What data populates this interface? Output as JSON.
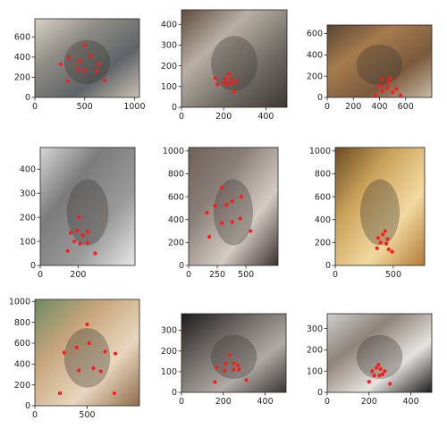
{
  "colors": {
    "keypoint": "#ff1a1a",
    "axes": "#222222",
    "background": "#ffffff"
  },
  "chart_data": [
    {
      "type": "scatter",
      "image": "gray cat lying on pillow",
      "xlim": [
        0,
        1050
      ],
      "ylim": [
        780,
        0
      ],
      "xticks": [
        0,
        500,
        1000
      ],
      "yticks": [
        0,
        200,
        400,
        600
      ],
      "points": [
        [
          330,
          160
        ],
        [
          430,
          280
        ],
        [
          500,
          270
        ],
        [
          620,
          260
        ],
        [
          700,
          170
        ],
        [
          260,
          330
        ],
        [
          340,
          390
        ],
        [
          450,
          360
        ],
        [
          560,
          410
        ],
        [
          640,
          330
        ],
        [
          500,
          520
        ]
      ]
    },
    {
      "type": "scatter",
      "image": "cat on cluttered desk with phone",
      "xlim": [
        0,
        500
      ],
      "ylim": [
        470,
        0
      ],
      "xticks": [
        0,
        200,
        400
      ],
      "yticks": [
        0,
        100,
        200,
        300,
        400
      ],
      "points": [
        [
          170,
          110
        ],
        [
          200,
          120
        ],
        [
          215,
          110
        ],
        [
          235,
          115
        ],
        [
          250,
          75
        ],
        [
          160,
          140
        ],
        [
          210,
          140
        ],
        [
          235,
          135
        ],
        [
          260,
          125
        ],
        [
          225,
          160
        ]
      ]
    },
    {
      "type": "scatter",
      "image": "orange tabby sitting in room",
      "xlim": [
        0,
        800
      ],
      "ylim": [
        680,
        0
      ],
      "xticks": [
        0,
        200,
        400,
        600
      ],
      "yticks": [
        0,
        200,
        400,
        600
      ],
      "points": [
        [
          370,
          20
        ],
        [
          420,
          60
        ],
        [
          460,
          90
        ],
        [
          500,
          50
        ],
        [
          560,
          20
        ],
        [
          400,
          110
        ],
        [
          470,
          140
        ],
        [
          530,
          80
        ],
        [
          420,
          170
        ],
        [
          480,
          180
        ]
      ]
    },
    {
      "type": "scatter",
      "image": "grayscale tabby kitten",
      "xlim": [
        0,
        500
      ],
      "ylim": [
        490,
        0
      ],
      "xticks": [
        0,
        200
      ],
      "yticks": [
        0,
        100,
        200,
        300,
        400
      ],
      "points": [
        [
          145,
          60
        ],
        [
          180,
          100
        ],
        [
          210,
          90
        ],
        [
          250,
          95
        ],
        [
          290,
          50
        ],
        [
          160,
          135
        ],
        [
          195,
          145
        ],
        [
          225,
          125
        ],
        [
          250,
          140
        ],
        [
          205,
          200
        ]
      ]
    },
    {
      "type": "scatter",
      "image": "gray cat being petted",
      "xlim": [
        0,
        780
      ],
      "ylim": [
        1030,
        0
      ],
      "xticks": [
        0,
        250,
        500
      ],
      "yticks": [
        0,
        200,
        400,
        600,
        800,
        1000
      ],
      "points": [
        [
          180,
          250
        ],
        [
          290,
          370
        ],
        [
          380,
          380
        ],
        [
          450,
          410
        ],
        [
          540,
          300
        ],
        [
          160,
          460
        ],
        [
          230,
          520
        ],
        [
          330,
          530
        ],
        [
          380,
          560
        ],
        [
          460,
          600
        ],
        [
          290,
          680
        ]
      ]
    },
    {
      "type": "scatter",
      "image": "black and white cat on wooden floor",
      "xlim": [
        0,
        770
      ],
      "ylim": [
        1030,
        0
      ],
      "xticks": [
        0,
        500
      ],
      "yticks": [
        0,
        200,
        400,
        600,
        800,
        1000
      ],
      "points": [
        [
          360,
          150
        ],
        [
          390,
          200
        ],
        [
          440,
          190
        ],
        [
          460,
          140
        ],
        [
          490,
          120
        ],
        [
          370,
          240
        ],
        [
          410,
          270
        ],
        [
          450,
          230
        ],
        [
          430,
          300
        ]
      ]
    },
    {
      "type": "scatter",
      "image": "caracal portrait",
      "xlim": [
        0,
        1000
      ],
      "ylim": [
        1020,
        0
      ],
      "xticks": [
        0,
        500
      ],
      "yticks": [
        0,
        200,
        400,
        600,
        800,
        1000
      ],
      "points": [
        [
          240,
          120
        ],
        [
          420,
          340
        ],
        [
          560,
          360
        ],
        [
          630,
          330
        ],
        [
          760,
          120
        ],
        [
          280,
          510
        ],
        [
          400,
          560
        ],
        [
          520,
          600
        ],
        [
          670,
          520
        ],
        [
          770,
          500
        ],
        [
          500,
          780
        ]
      ]
    },
    {
      "type": "scatter",
      "image": "gray kitten with dark background",
      "xlim": [
        0,
        500
      ],
      "ylim": [
        380,
        0
      ],
      "xticks": [
        0,
        200,
        400
      ],
      "yticks": [
        0,
        100,
        200,
        300
      ],
      "points": [
        [
          160,
          50
        ],
        [
          205,
          105
        ],
        [
          250,
          110
        ],
        [
          275,
          110
        ],
        [
          310,
          60
        ],
        [
          170,
          120
        ],
        [
          210,
          140
        ],
        [
          250,
          140
        ],
        [
          270,
          130
        ],
        [
          230,
          180
        ]
      ]
    },
    {
      "type": "scatter",
      "image": "tabby kitten sitting on bed",
      "xlim": [
        0,
        500
      ],
      "ylim": [
        370,
        0
      ],
      "xticks": [
        0,
        200,
        400
      ],
      "yticks": [
        0,
        100,
        200,
        300
      ],
      "points": [
        [
          200,
          50
        ],
        [
          225,
          80
        ],
        [
          250,
          80
        ],
        [
          265,
          85
        ],
        [
          300,
          40
        ],
        [
          215,
          100
        ],
        [
          235,
          115
        ],
        [
          255,
          110
        ],
        [
          275,
          100
        ],
        [
          245,
          130
        ]
      ]
    }
  ]
}
